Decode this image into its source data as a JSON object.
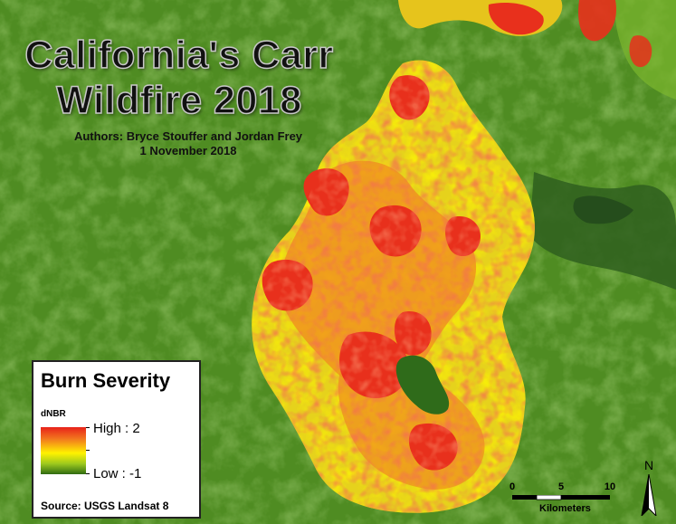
{
  "title": {
    "line1": "California's Carr",
    "line2": "Wildfire 2018"
  },
  "authors": "Authors: Bryce Stouffer and Jordan Frey",
  "date": "1 November 2018",
  "legend": {
    "title": "Burn Severity",
    "field": "dNBR",
    "high_label": "High : 2",
    "low_label": "Low : -1",
    "high_color": "#e8221a",
    "mid_color": "#fff200",
    "low_color": "#2f6b12",
    "source": "Source: USGS Landsat 8"
  },
  "scale_bar": {
    "ticks": [
      "0",
      "5",
      "10"
    ],
    "unit": "Kilometers"
  },
  "north_arrow": {
    "letter": "N",
    "icon": "north-arrow-icon"
  },
  "colors": {
    "background_vegetation": "#3f7a1e",
    "unburned_light": "#6fa82a",
    "water": "#2d5a2a",
    "burn_high": "#e8221a",
    "burn_moderate": "#f2781e",
    "burn_low": "#fff200"
  }
}
